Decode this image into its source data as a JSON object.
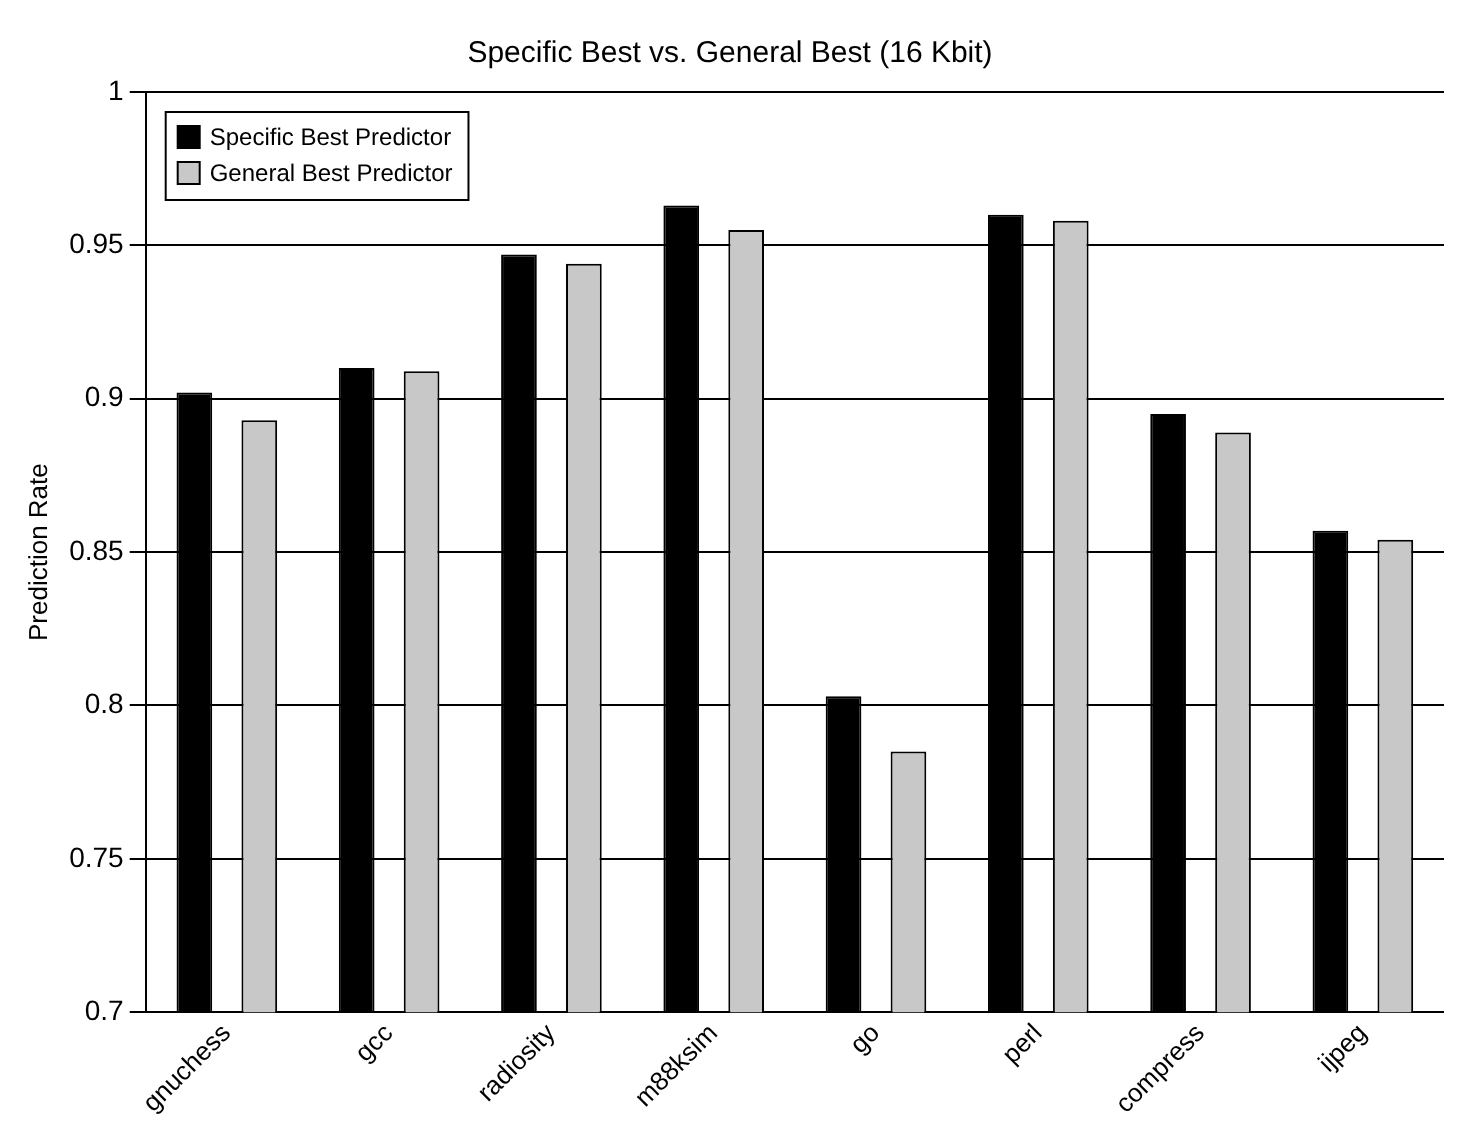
{
  "chart_data": {
    "type": "bar",
    "title": "Specific Best vs. General Best (16 Kbit)",
    "ylabel": "Prediction Rate",
    "categories": [
      "gnuchess",
      "gcc",
      "radiosity",
      "m88ksim",
      "go",
      "perl",
      "compress",
      "ijpeg"
    ],
    "series": [
      {
        "name": "Specific Best Predictor",
        "color": "#000000",
        "values": [
          0.902,
          0.91,
          0.947,
          0.963,
          0.803,
          0.96,
          0.895,
          0.857
        ]
      },
      {
        "name": "General Best Predictor",
        "color": "#c8c8c8",
        "values": [
          0.893,
          0.909,
          0.944,
          0.955,
          0.785,
          0.958,
          0.889,
          0.854
        ]
      }
    ],
    "ylim": [
      0.7,
      1
    ],
    "yticks": [
      0.7,
      0.75,
      0.8,
      0.85,
      0.9,
      0.95,
      1
    ],
    "grid": "y",
    "legend": "top left"
  }
}
